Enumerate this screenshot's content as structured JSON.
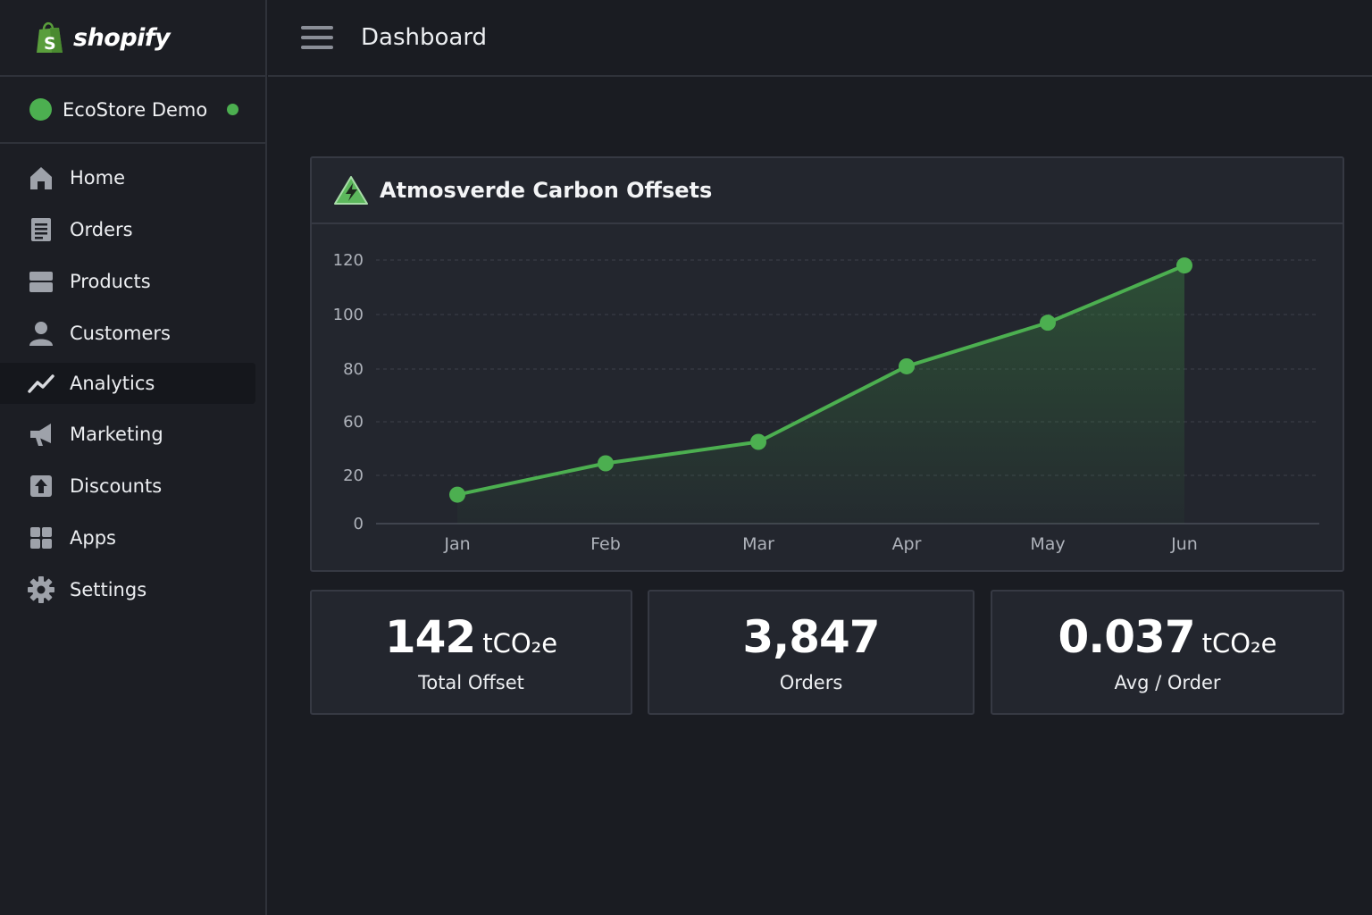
{
  "app": {
    "brand": "shopify",
    "store_name": "EcoStore Demo",
    "page_title": "Dashboard"
  },
  "colors": {
    "accent": "#4caf50",
    "background": "#1a1c22",
    "card": "#23262e"
  },
  "sidebar": {
    "items": [
      {
        "label": "Home",
        "icon": "home-icon"
      },
      {
        "label": "Orders",
        "icon": "orders-icon"
      },
      {
        "label": "Products",
        "icon": "products-icon"
      },
      {
        "label": "Customers",
        "icon": "customers-icon"
      },
      {
        "label": "Analytics",
        "icon": "analytics-icon",
        "active": true
      },
      {
        "label": "Marketing",
        "icon": "megaphone-icon"
      },
      {
        "label": "Discounts",
        "icon": "discounts-icon"
      },
      {
        "label": "Apps",
        "icon": "apps-icon"
      },
      {
        "label": "Settings",
        "icon": "gear-icon"
      }
    ]
  },
  "chart_card": {
    "title": "Atmosverde Carbon Offsets"
  },
  "chart_data": {
    "type": "line",
    "title": "Atmosverde Carbon Offsets",
    "categories": [
      "Jan",
      "Feb",
      "Mar",
      "Apr",
      "May",
      "Jun"
    ],
    "series": [
      {
        "values": [
          12,
          29,
          45,
          81,
          97,
          118
        ]
      }
    ],
    "y_ticks": [
      "0",
      "20",
      "60",
      "80",
      "100",
      "120"
    ],
    "xlabel": "",
    "ylabel": "",
    "grid": true,
    "area_fill": true,
    "legend": "none"
  },
  "stats": [
    {
      "value": "142",
      "unit": "tCO₂e",
      "label": "Total Offset"
    },
    {
      "value": "3,847",
      "unit": "",
      "label": "Orders"
    },
    {
      "value": "0.037",
      "unit": "tCO₂e",
      "label": "Avg / Order"
    }
  ]
}
